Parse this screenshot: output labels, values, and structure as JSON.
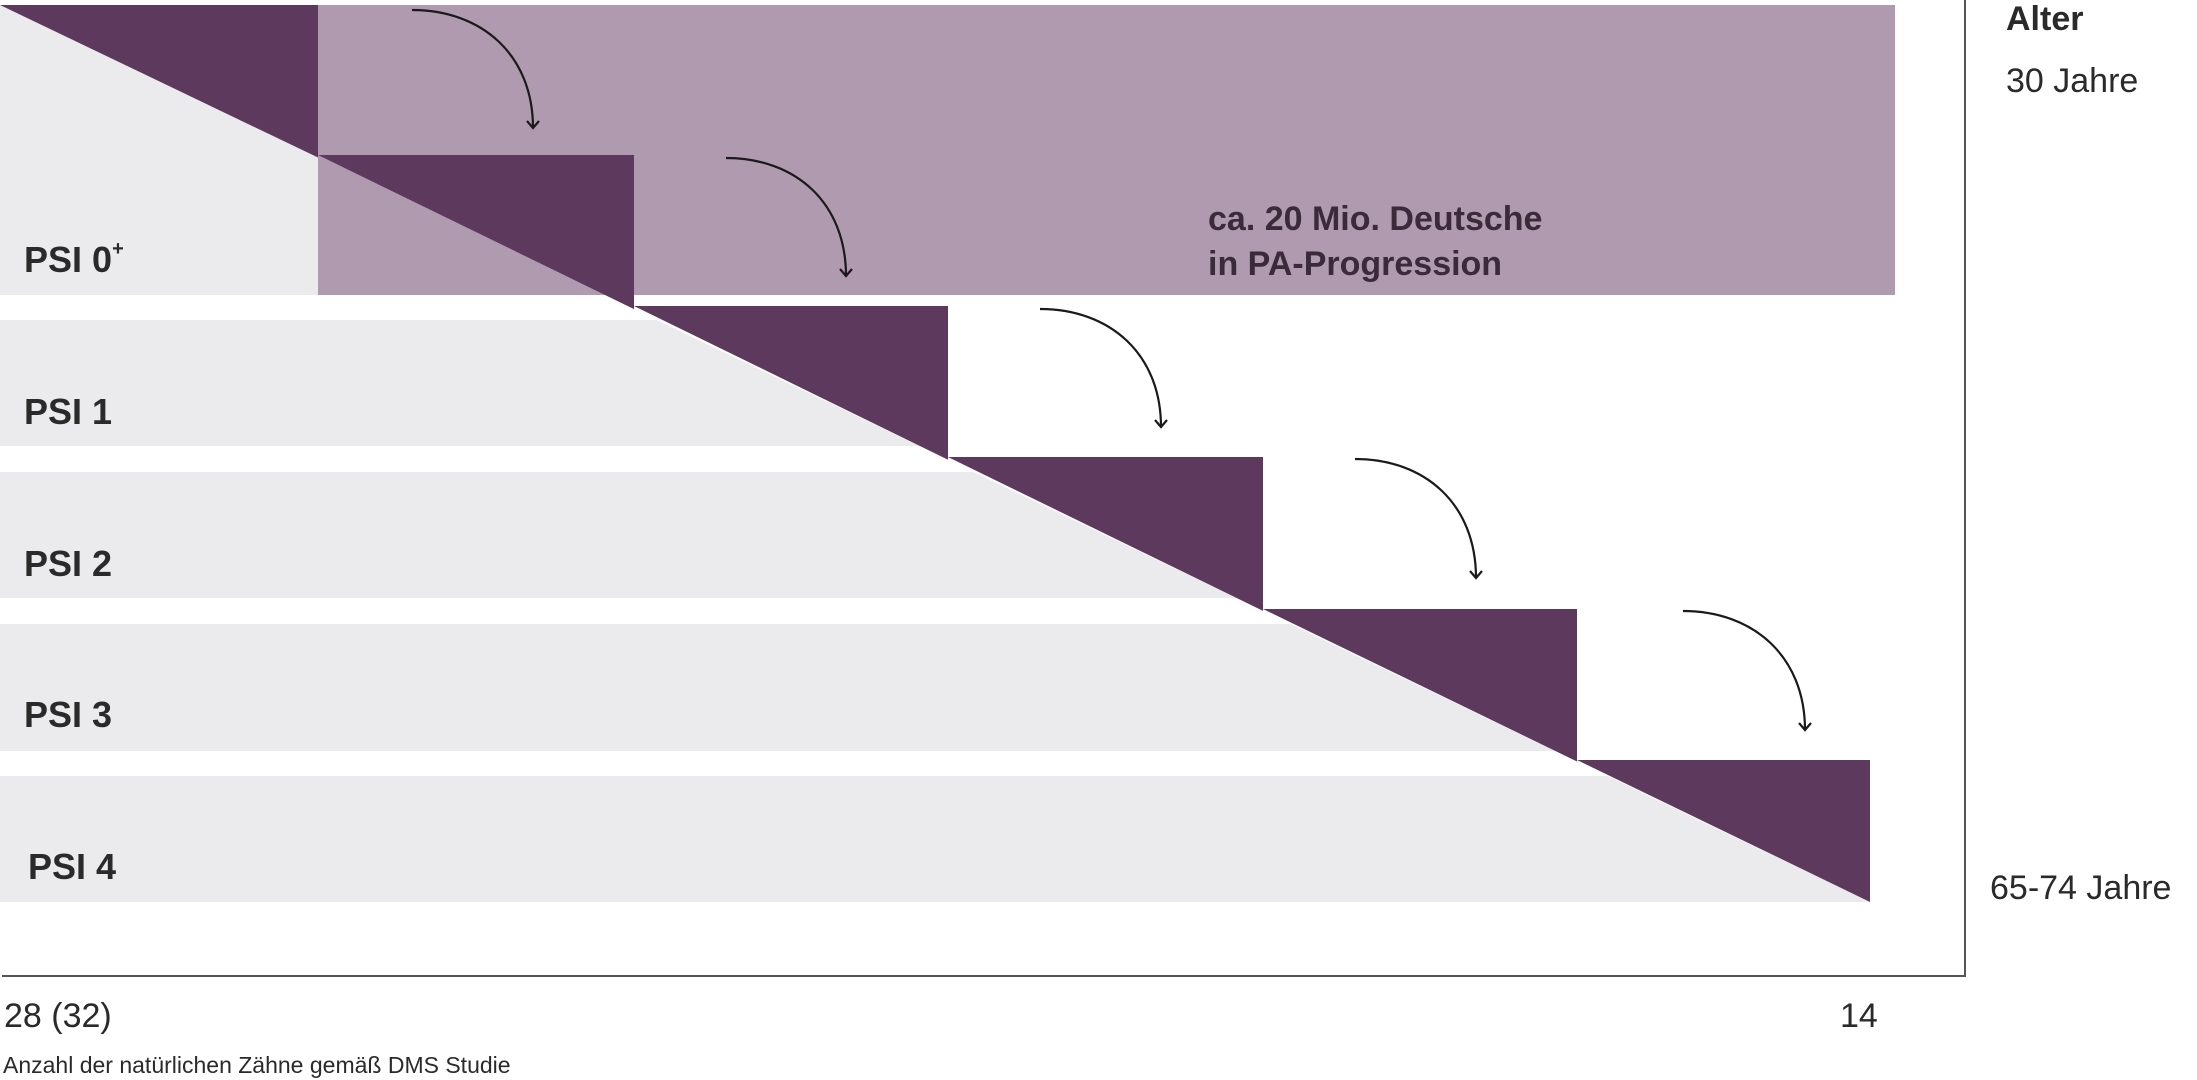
{
  "psi_levels": [
    {
      "label": "PSI 0",
      "superscript": "+"
    },
    {
      "label": "PSI 1",
      "superscript": ""
    },
    {
      "label": "PSI 2",
      "superscript": ""
    },
    {
      "label": "PSI 3",
      "superscript": ""
    },
    {
      "label": "PSI 4",
      "superscript": ""
    }
  ],
  "callout": {
    "line1": "ca. 20 Mio. Deutsche",
    "line2": "in PA-Progression"
  },
  "age_axis": {
    "heading": "Alter",
    "top_value": "30 Jahre",
    "bottom_value": "65-74 Jahre"
  },
  "teeth_axis": {
    "start_value": "28 (32)",
    "end_value": "14",
    "title": "Anzahl der natürlichen Zähne gemäß DMS Studie"
  },
  "colors": {
    "dark_purple": "#5e395e",
    "light_purple": "#af9aaf",
    "band_gray": "#ebebed",
    "axis_line": "#555555",
    "arrow": "#1a1a1a"
  }
}
